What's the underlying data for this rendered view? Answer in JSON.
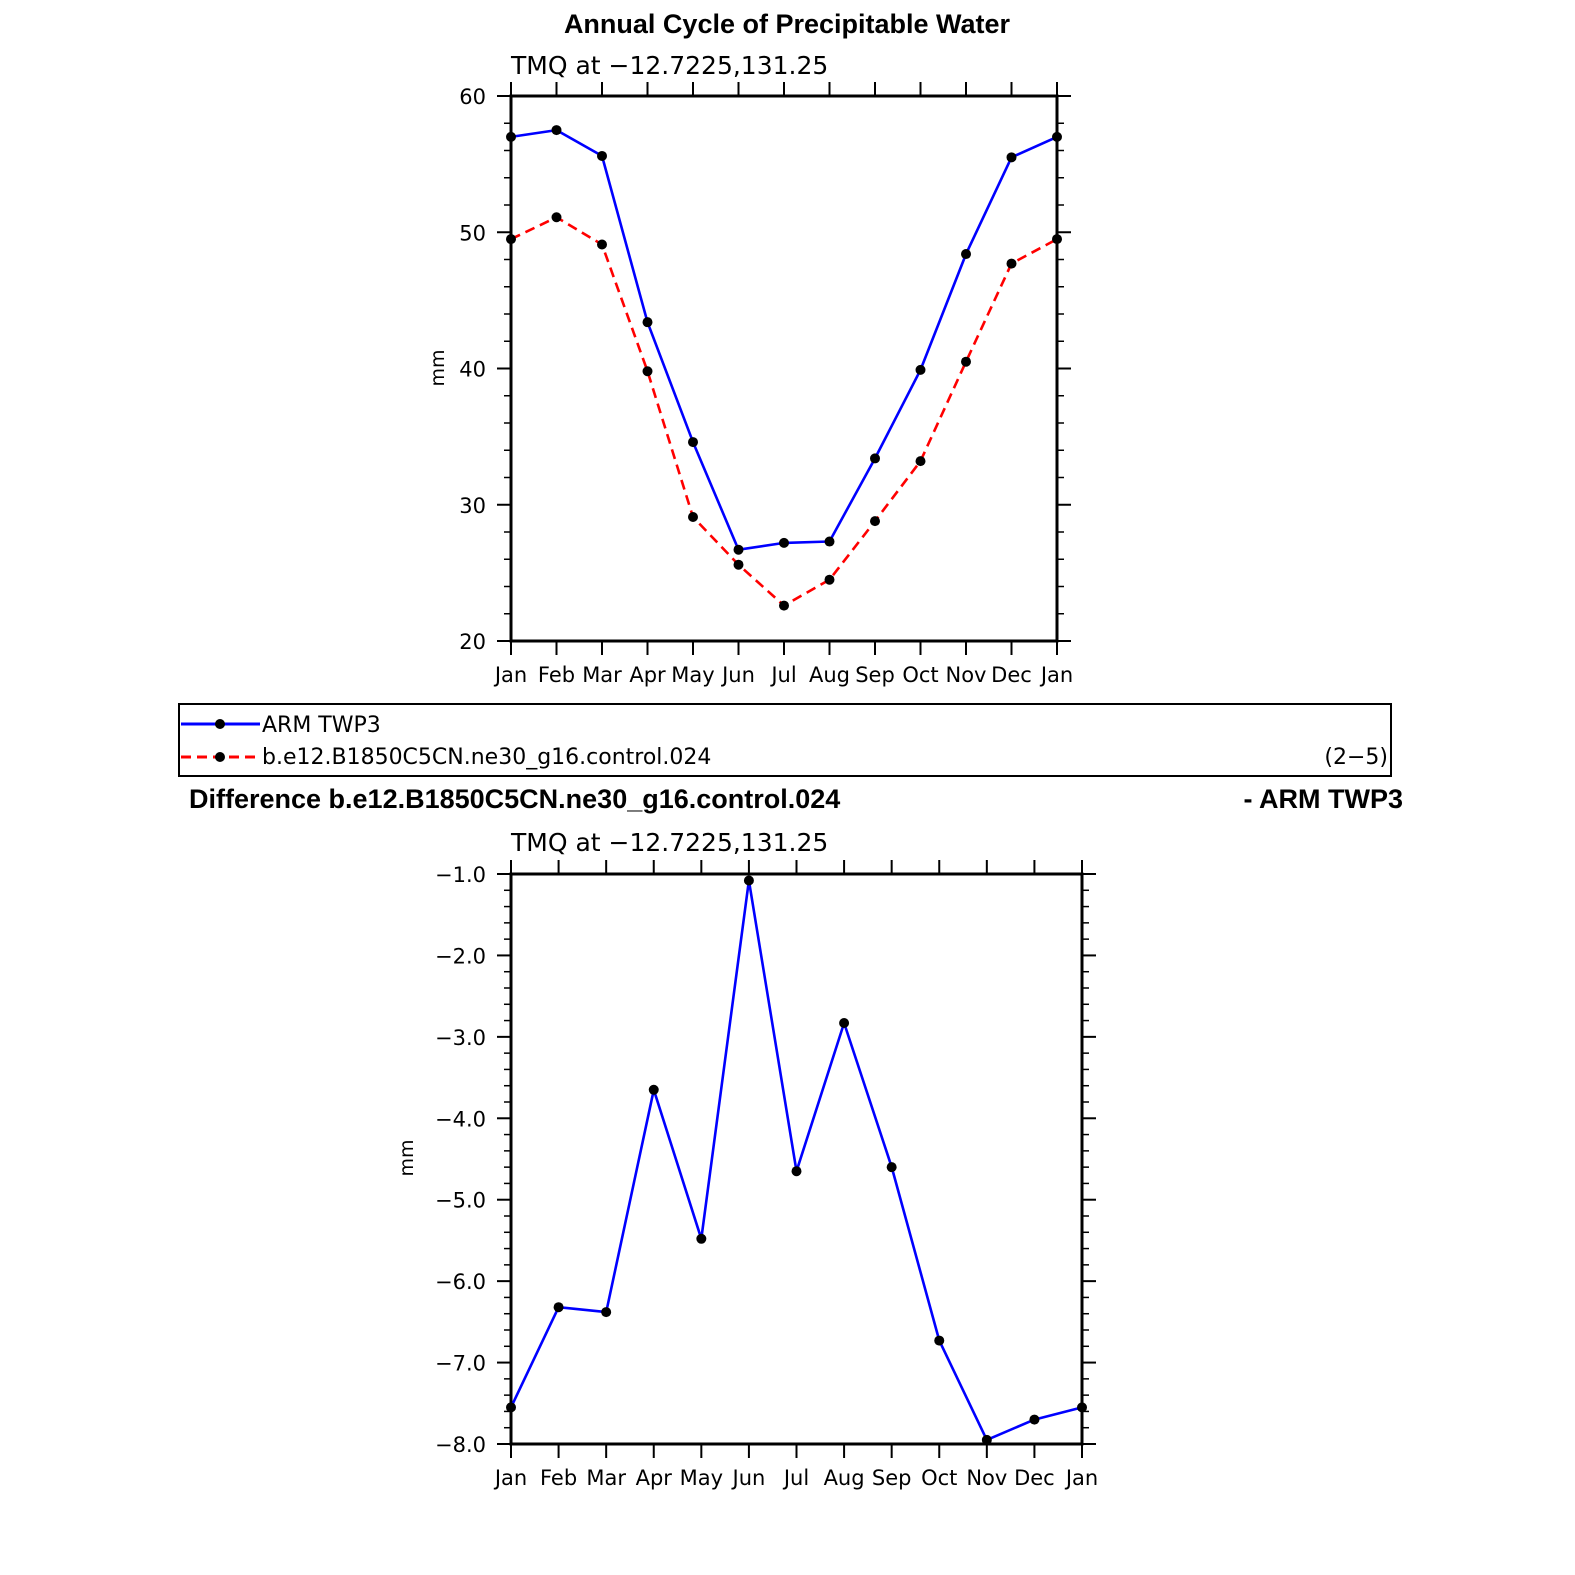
{
  "figure": {
    "title": "Annual Cycle of Precipitable Water",
    "legend": {
      "entries": [
        "ARM TWP3",
        "b.e12.B1850C5CN.ne30_g16.control.024"
      ],
      "tag": "(2−5)"
    },
    "difference_title_left": "Difference b.e12.B1850C5CN.ne30_g16.control.024",
    "difference_title_right": "- ARM TWP3"
  },
  "colors": {
    "series1": "#0000ff",
    "series2": "#ff0000",
    "marker": "#000000"
  },
  "chart_data": [
    {
      "type": "line",
      "subtitle": "TMQ at −12.7225,131.25",
      "ylabel": "mm",
      "xlabel": "",
      "categories": [
        "Jan",
        "Feb",
        "Mar",
        "Apr",
        "May",
        "Jun",
        "Jul",
        "Aug",
        "Sep",
        "Oct",
        "Nov",
        "Dec",
        "Jan"
      ],
      "ylim": [
        20,
        60
      ],
      "yticks": [
        "20",
        "30",
        "40",
        "50",
        "60"
      ],
      "series": [
        {
          "name": "ARM TWP3",
          "style": "solid",
          "color": "#0000ff",
          "values": [
            57.0,
            57.5,
            55.6,
            43.4,
            34.6,
            26.7,
            27.2,
            27.3,
            33.4,
            39.9,
            48.4,
            55.5,
            57.0
          ]
        },
        {
          "name": "b.e12.B1850C5CN.ne30_g16.control.024",
          "style": "dashed",
          "color": "#ff0000",
          "values": [
            49.5,
            51.1,
            49.1,
            39.8,
            29.1,
            25.6,
            22.6,
            24.5,
            28.8,
            33.2,
            40.5,
            47.7,
            49.5
          ]
        }
      ],
      "grid": false
    },
    {
      "type": "line",
      "subtitle": "TMQ at −12.7225,131.25",
      "ylabel": "mm",
      "xlabel": "",
      "categories": [
        "Jan",
        "Feb",
        "Mar",
        "Apr",
        "May",
        "Jun",
        "Jul",
        "Aug",
        "Sep",
        "Oct",
        "Nov",
        "Dec",
        "Jan"
      ],
      "ylim": [
        -8.0,
        -1.0
      ],
      "yticks": [
        "−8.0",
        "−7.0",
        "−6.0",
        "−5.0",
        "−4.0",
        "−3.0",
        "−2.0",
        "−1.0"
      ],
      "series": [
        {
          "style": "solid",
          "color": "#0000ff",
          "values": [
            -7.55,
            -6.32,
            -6.38,
            -3.65,
            -5.48,
            -1.08,
            -4.65,
            -2.83,
            -4.6,
            -6.73,
            -7.95,
            -7.7,
            -7.55
          ]
        }
      ],
      "grid": false
    }
  ]
}
